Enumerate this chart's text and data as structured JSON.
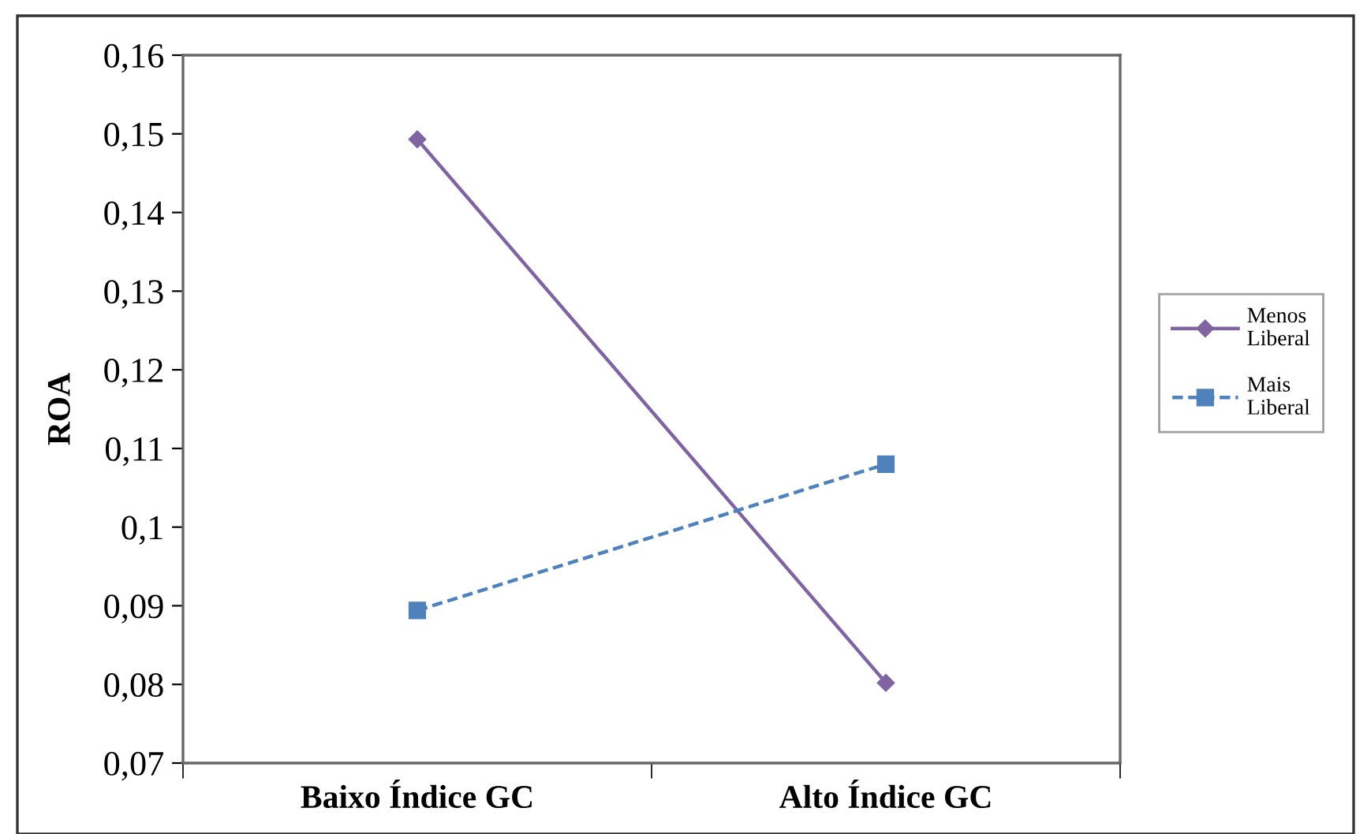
{
  "chart_data": {
    "type": "line",
    "ylabel": "ROA",
    "categories": [
      "Baixo Índice GC",
      "Alto Índice GC"
    ],
    "series": [
      {
        "name": "Menos\nLiberal",
        "color": "#8064a2",
        "values": [
          0.1493,
          0.0802
        ],
        "marker": "diamond",
        "line_style": "solid"
      },
      {
        "name": "Mais\nLiberal",
        "color": "#4f81bd",
        "values": [
          0.0894,
          0.108
        ],
        "marker": "square",
        "line_style": "dashed"
      }
    ],
    "ylim": [
      0.07,
      0.16
    ],
    "yticks": [
      {
        "value": 0.07,
        "label": "0,07"
      },
      {
        "value": 0.08,
        "label": "0,08"
      },
      {
        "value": 0.09,
        "label": "0,09"
      },
      {
        "value": 0.1,
        "label": "0,1"
      },
      {
        "value": 0.11,
        "label": "0,11"
      },
      {
        "value": 0.12,
        "label": "0,12"
      },
      {
        "value": 0.13,
        "label": "0,13"
      },
      {
        "value": 0.14,
        "label": "0,14"
      },
      {
        "value": 0.15,
        "label": "0,15"
      },
      {
        "value": 0.16,
        "label": "0,16"
      }
    ],
    "grid": false,
    "legend": "right"
  }
}
